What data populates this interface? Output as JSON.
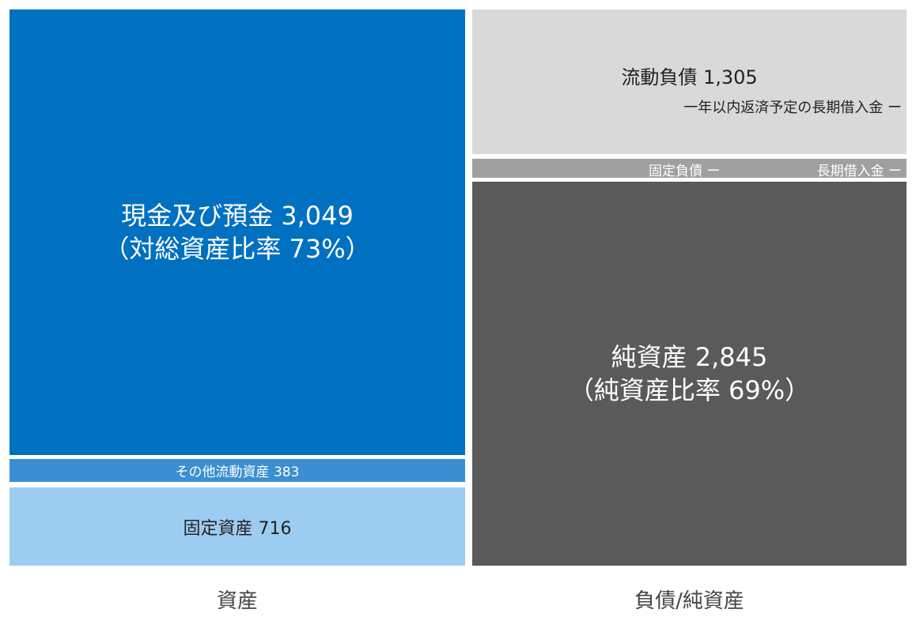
{
  "assets": {
    "cash": {
      "label": "現金及び預金 3,049",
      "ratio": "（対総資産比率 73%）"
    },
    "other_current": {
      "label": "その他流動資産 383"
    },
    "fixed": {
      "label": "固定資産 716"
    },
    "caption": "資産"
  },
  "liabilities_equity": {
    "current_liabilities": {
      "label": "流動負債 1,305",
      "sub": "一年以内返済予定の長期借入金 ー"
    },
    "fixed_liabilities": {
      "label": "固定負債 ー",
      "sub": "長期借入金 ー"
    },
    "net_assets": {
      "label": "純資産 2,845",
      "ratio": "（純資産比率 69%）"
    },
    "caption": "負債/純資産"
  }
}
